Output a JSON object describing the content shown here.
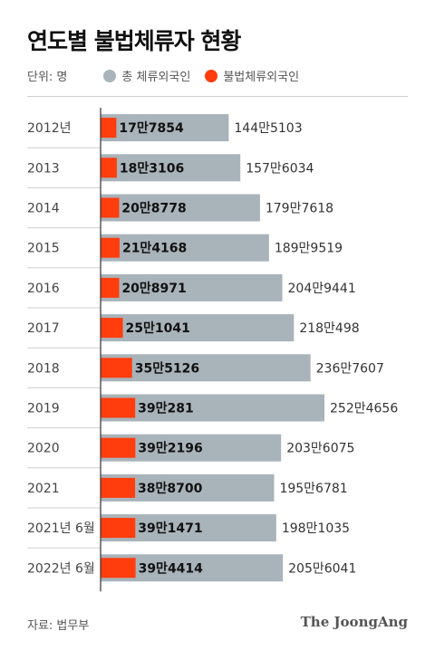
{
  "chart_data": {
    "type": "bar",
    "title": "연도별 불법체류자 현황",
    "unit_label": "단위: 명",
    "categories": [
      "2012년",
      "2013",
      "2014",
      "2015",
      "2016",
      "2017",
      "2018",
      "2019",
      "2020",
      "2021",
      "2021년 6월",
      "2022년 6월"
    ],
    "series": [
      {
        "name": "총 체류외국인",
        "color": "#a9b3ba",
        "values": [
          1445103,
          1576034,
          1797618,
          1899519,
          2049441,
          2180498,
          2367607,
          2524656,
          2036075,
          1956781,
          1981035,
          2056041
        ],
        "labels": [
          "144만5103",
          "157만6034",
          "179만7618",
          "189만9519",
          "204만9441",
          "218만498",
          "236만7607",
          "252만4656",
          "203만6075",
          "195만6781",
          "198만1035",
          "205만6041"
        ]
      },
      {
        "name": "불법체류외국인",
        "color": "#ff3d0d",
        "values": [
          177854,
          183106,
          208778,
          214168,
          208971,
          251041,
          355126,
          390281,
          392196,
          388700,
          391471,
          394414
        ],
        "labels": [
          "17만7854",
          "18만3106",
          "20만8778",
          "21만4168",
          "20만8971",
          "25만1041",
          "35만5126",
          "39만281",
          "39만2196",
          "38만8700",
          "39만1471",
          "39만4414"
        ]
      }
    ],
    "source": "자료: 법무부",
    "brand": "The JoongAng"
  }
}
